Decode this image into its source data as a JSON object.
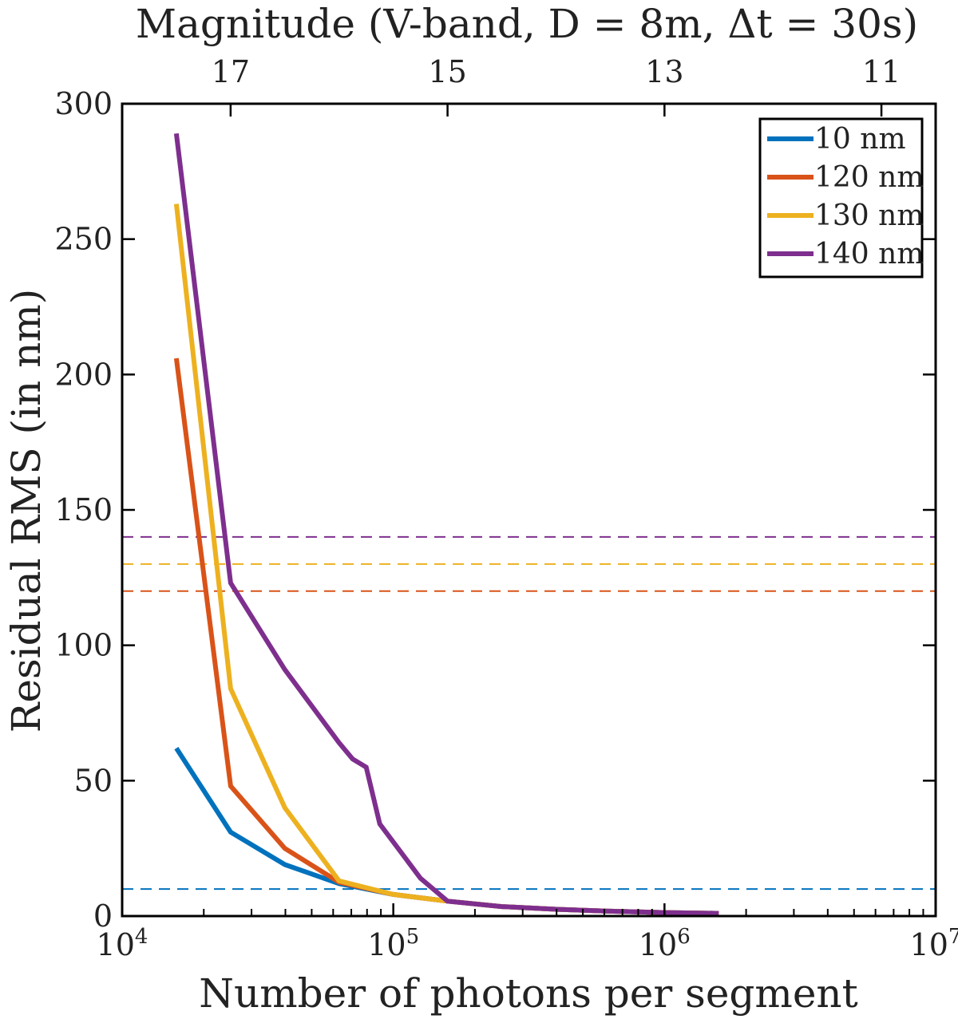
{
  "chart_data": {
    "type": "line",
    "top_axis_title": "Magnitude (V-band, D = 8m, Δt = 30s)",
    "xlabel": "Number of photons per segment",
    "ylabel": "Residual RMS (in nm)",
    "xscale": "log",
    "xlim": [
      10000,
      10000000
    ],
    "ylim": [
      0,
      300
    ],
    "x_ticks": [
      {
        "value": 10000,
        "base": "10",
        "exp": "4"
      },
      {
        "value": 100000,
        "base": "10",
        "exp": "5"
      },
      {
        "value": 1000000,
        "base": "10",
        "exp": "6"
      },
      {
        "value": 10000000,
        "base": "10",
        "exp": "7"
      }
    ],
    "y_ticks": [
      0,
      50,
      100,
      150,
      200,
      250,
      300
    ],
    "top_ticks": [
      {
        "label": "17",
        "photons": 25119
      },
      {
        "label": "15",
        "photons": 158489
      },
      {
        "label": "13",
        "photons": 1000000
      },
      {
        "label": "11",
        "photons": 6309573
      }
    ],
    "series": [
      {
        "name": "10 nm",
        "color": "#0072BD",
        "threshold": 10,
        "points": [
          [
            15849,
            62
          ],
          [
            25119,
            31
          ],
          [
            39811,
            19
          ],
          [
            63096,
            12
          ],
          [
            100000,
            8
          ],
          [
            158489,
            5.5
          ],
          [
            251189,
            3.5
          ],
          [
            398107,
            2.5
          ],
          [
            630957,
            1.8
          ],
          [
            1000000,
            1.3
          ],
          [
            1584893,
            1.0
          ]
        ]
      },
      {
        "name": "120 nm",
        "color": "#D95319",
        "threshold": 120,
        "points": [
          [
            15849,
            206
          ],
          [
            25119,
            48
          ],
          [
            39811,
            25
          ],
          [
            63096,
            12.5
          ],
          [
            100000,
            8
          ],
          [
            158489,
            5.5
          ],
          [
            251189,
            3.5
          ],
          [
            398107,
            2.5
          ],
          [
            630957,
            1.8
          ],
          [
            1000000,
            1.3
          ],
          [
            1584893,
            1.0
          ]
        ]
      },
      {
        "name": "130 nm",
        "color": "#EDB120",
        "threshold": 130,
        "points": [
          [
            15849,
            263
          ],
          [
            25119,
            84
          ],
          [
            39811,
            40
          ],
          [
            63096,
            13
          ],
          [
            100000,
            8
          ],
          [
            158489,
            5.5
          ],
          [
            251189,
            3.5
          ],
          [
            398107,
            2.5
          ],
          [
            630957,
            1.8
          ],
          [
            1000000,
            1.3
          ],
          [
            1584893,
            1.0
          ]
        ]
      },
      {
        "name": "140 nm",
        "color": "#7E2F8E",
        "threshold": 140,
        "points": [
          [
            15849,
            289
          ],
          [
            25119,
            123
          ],
          [
            39811,
            91
          ],
          [
            63096,
            64
          ],
          [
            70795,
            58
          ],
          [
            79433,
            55
          ],
          [
            89125,
            34
          ],
          [
            125893,
            14
          ],
          [
            158489,
            5.5
          ],
          [
            251189,
            3.5
          ],
          [
            398107,
            2.5
          ],
          [
            630957,
            1.8
          ],
          [
            1000000,
            1.3
          ],
          [
            1584893,
            1.0
          ]
        ]
      }
    ],
    "legend_position": "top-right"
  }
}
